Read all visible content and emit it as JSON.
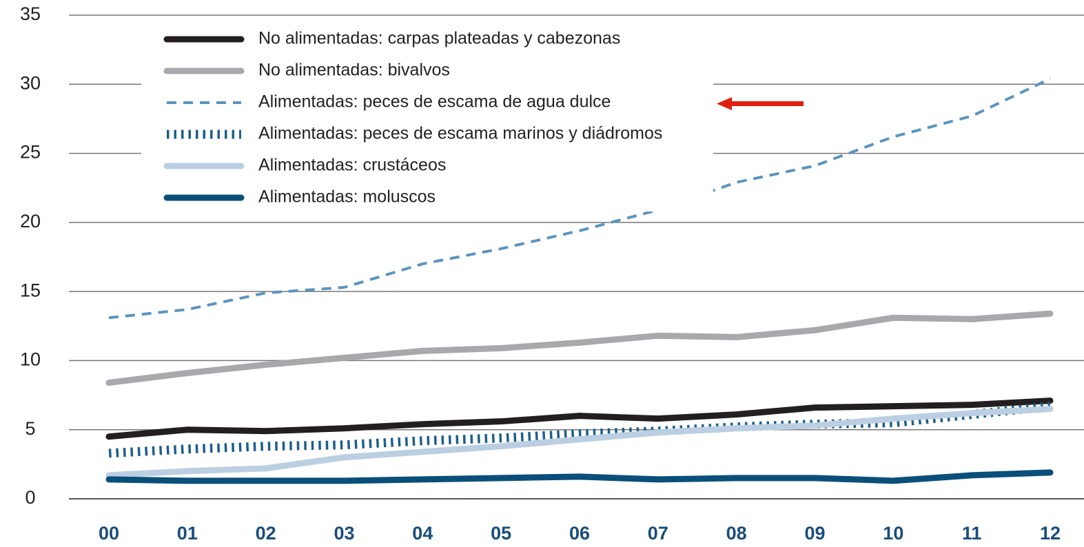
{
  "chart_data": {
    "type": "line",
    "categories": [
      "00",
      "01",
      "02",
      "03",
      "04",
      "05",
      "06",
      "07",
      "08",
      "09",
      "10",
      "11",
      "12"
    ],
    "ylim": [
      0,
      35
    ],
    "yticks": [
      0,
      5,
      10,
      15,
      20,
      25,
      30,
      35
    ],
    "grid": true,
    "legend": "top-left",
    "series": [
      {
        "name": "No alimentadas: carpas plateadas y cabezonas",
        "color": "#231f20",
        "dash": "solid",
        "values": [
          4.5,
          5.0,
          4.9,
          5.1,
          5.4,
          5.6,
          6.0,
          5.8,
          6.1,
          6.6,
          6.7,
          6.8,
          7.1
        ]
      },
      {
        "name": "No alimentadas: bivalvos",
        "color": "#a7a9ac",
        "dash": "solid",
        "values": [
          8.4,
          9.1,
          9.7,
          10.2,
          10.7,
          10.9,
          11.3,
          11.8,
          11.7,
          12.2,
          13.1,
          13.0,
          13.4
        ]
      },
      {
        "name": "Alimentadas: peces de escama de agua dulce",
        "color": "#5b94bf",
        "dash": "dashed",
        "values": [
          13.1,
          13.7,
          14.9,
          15.3,
          17.0,
          18.1,
          19.4,
          20.9,
          22.9,
          24.1,
          26.2,
          27.7,
          30.4
        ]
      },
      {
        "name": "Alimentadas: peces de escama marinos y diádromos",
        "color": "#1f5f8b",
        "dash": "dotted",
        "values": [
          3.3,
          3.6,
          3.8,
          3.9,
          4.2,
          4.4,
          4.7,
          4.9,
          5.2,
          5.4,
          5.5,
          6.1,
          6.7
        ]
      },
      {
        "name": "Alimentadas: crustáceos",
        "color": "#bccfe2",
        "dash": "solid",
        "values": [
          1.7,
          2.0,
          2.2,
          3.0,
          3.4,
          3.8,
          4.3,
          4.8,
          5.1,
          5.3,
          5.8,
          6.2,
          6.5
        ]
      },
      {
        "name": "Alimentadas: moluscos",
        "color": "#0a4f7a",
        "dash": "solid",
        "values": [
          1.4,
          1.3,
          1.3,
          1.3,
          1.4,
          1.5,
          1.6,
          1.4,
          1.5,
          1.5,
          1.3,
          1.7,
          1.9
        ]
      }
    ]
  }
}
